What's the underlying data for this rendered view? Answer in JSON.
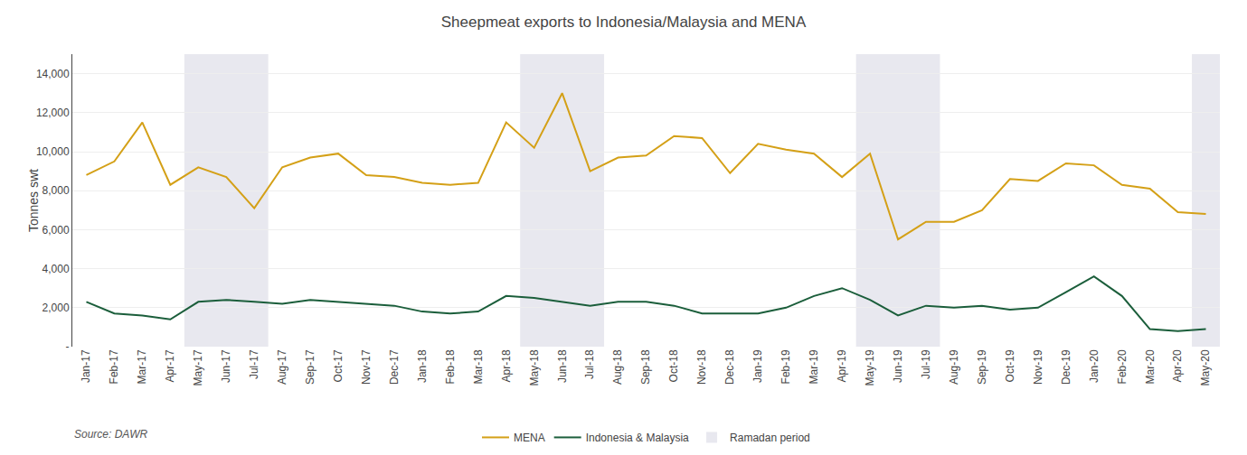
{
  "chart_data": {
    "type": "line",
    "title": "Sheepmeat exports to Indonesia/Malaysia and MENA",
    "ylabel": "Tonnes swt",
    "annotations": [
      "Source: DAWR"
    ],
    "categories": [
      "Jan-17",
      "Feb-17",
      "Mar-17",
      "Apr-17",
      "May-17",
      "Jun-17",
      "Jul-17",
      "Aug-17",
      "Sep-17",
      "Oct-17",
      "Nov-17",
      "Dec-17",
      "Jan-18",
      "Feb-18",
      "Mar-18",
      "Apr-18",
      "May-18",
      "Jun-18",
      "Jul-18",
      "Aug-18",
      "Sep-18",
      "Oct-18",
      "Nov-18",
      "Dec-18",
      "Jan-19",
      "Feb-19",
      "Mar-19",
      "Apr-19",
      "May-19",
      "Jun-19",
      "Jul-19",
      "Aug-19",
      "Sep-19",
      "Oct-19",
      "Nov-19",
      "Dec-19",
      "Jan-20",
      "Feb-20",
      "Mar-20",
      "Apr-20",
      "May-20"
    ],
    "series": [
      {
        "name": "MENA",
        "color": "#D4A017",
        "values": [
          8800,
          9500,
          11500,
          8300,
          9200,
          8700,
          7100,
          9200,
          9700,
          9900,
          8800,
          8700,
          8400,
          8300,
          8400,
          11500,
          10200,
          13000,
          9000,
          9700,
          9800,
          10800,
          10700,
          8900,
          10400,
          10100,
          9900,
          8700,
          9900,
          5500,
          6400,
          6400,
          7000,
          8600,
          8500,
          9400,
          9300,
          8300,
          8100,
          6900,
          6800
        ]
      },
      {
        "name": "Indonesia & Malaysia",
        "color": "#1B5E3B",
        "values": [
          2300,
          1700,
          1600,
          1400,
          2300,
          2400,
          2300,
          2200,
          2400,
          2300,
          2200,
          2100,
          1800,
          1700,
          1800,
          2600,
          2500,
          2300,
          2100,
          2300,
          2300,
          2100,
          1700,
          1700,
          1700,
          2000,
          2600,
          3000,
          2400,
          1600,
          2100,
          2000,
          2100,
          1900,
          2000,
          2800,
          3600,
          2600,
          900,
          800,
          900
        ]
      }
    ],
    "shaded_periods": {
      "name": "Ramadan period",
      "color": "#E8E8EF",
      "periods": [
        {
          "start": "May-17",
          "end": "Jul-17"
        },
        {
          "start": "May-18",
          "end": "Jul-18"
        },
        {
          "start": "May-19",
          "end": "Jul-19"
        },
        {
          "start": "May-20",
          "end": "May-20"
        }
      ]
    },
    "ylim": [
      0,
      15000
    ],
    "yticks": [
      {
        "value": 0,
        "label": "-"
      },
      {
        "value": 2000,
        "label": "2,000"
      },
      {
        "value": 4000,
        "label": "4,000"
      },
      {
        "value": 6000,
        "label": "6,000"
      },
      {
        "value": 8000,
        "label": "8,000"
      },
      {
        "value": 10000,
        "label": "10,000"
      },
      {
        "value": 12000,
        "label": "12,000"
      },
      {
        "value": 14000,
        "label": "14,000"
      }
    ],
    "grid": true,
    "legend": "bottom"
  }
}
